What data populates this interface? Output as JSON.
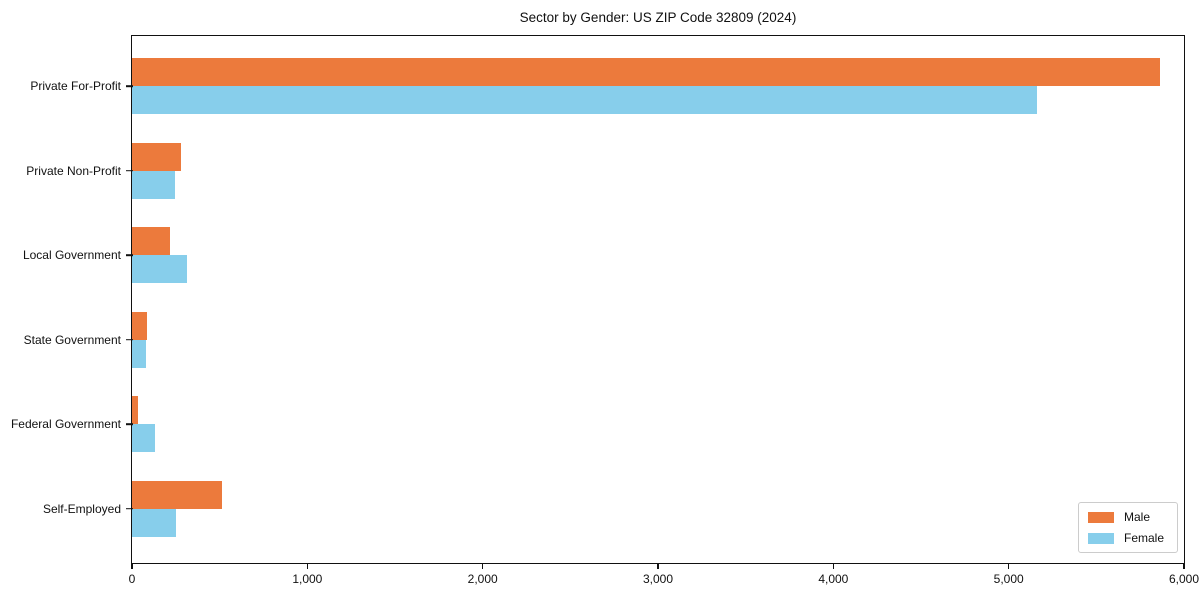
{
  "chart_data": {
    "type": "bar",
    "orientation": "horizontal",
    "title": "Sector by Gender: US ZIP Code 32809 (2024)",
    "categories": [
      "Private For-Profit",
      "Private Non-Profit",
      "Local Government",
      "State Government",
      "Federal Government",
      "Self-Employed"
    ],
    "series": [
      {
        "name": "Male",
        "color": "#ec7a3c",
        "values": [
          5865,
          282,
          218,
          88,
          37,
          516
        ]
      },
      {
        "name": "Female",
        "color": "#87ceeb",
        "values": [
          5160,
          243,
          311,
          78,
          130,
          251
        ]
      }
    ],
    "xlabel": "",
    "ylabel": "",
    "xlim": [
      0,
      6000
    ],
    "x_ticks": [
      0,
      1000,
      2000,
      3000,
      4000,
      5000,
      6000
    ],
    "x_tick_labels": [
      "0",
      "1,000",
      "2,000",
      "3,000",
      "4,000",
      "5,000",
      "6,000"
    ],
    "grid": false,
    "legend_position": "lower right",
    "background": "#ffffff",
    "axis_color": "#111111",
    "legend_border_color": "#cccccc"
  }
}
